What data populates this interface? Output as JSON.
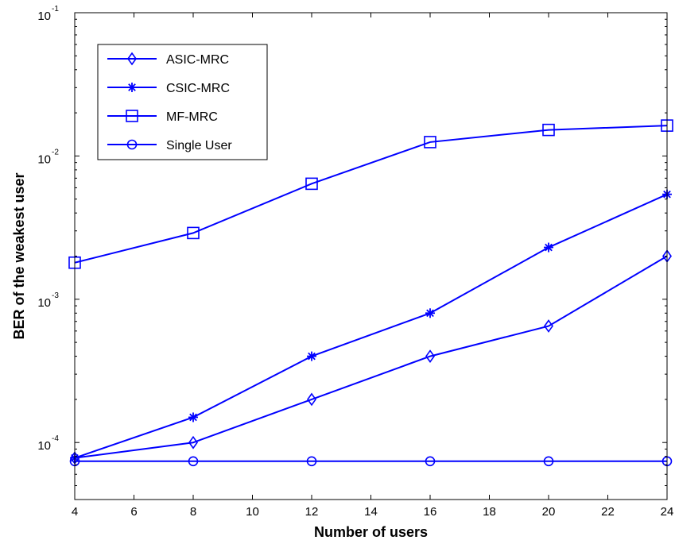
{
  "chart_data": {
    "type": "line",
    "title": "",
    "xlabel": "Number of users",
    "ylabel": "BER of the weakest user",
    "xlim": [
      4,
      24
    ],
    "ylim": [
      4e-05,
      0.1
    ],
    "yscale": "log",
    "grid": false,
    "legend_position": "top-left",
    "line_color": "#0000ff",
    "x_ticks": [
      "4",
      "6",
      "8",
      "10",
      "12",
      "14",
      "16",
      "18",
      "20",
      "22",
      "24"
    ],
    "y_ticks": [
      {
        "base": "10",
        "exp": "-4"
      },
      {
        "base": "10",
        "exp": "-3"
      },
      {
        "base": "10",
        "exp": "-2"
      },
      {
        "base": "10",
        "exp": "-1"
      }
    ],
    "x": [
      4,
      8,
      12,
      16,
      20,
      24
    ],
    "series": [
      {
        "name": "ASIC-MRC",
        "marker": "diamond",
        "values": [
          7.8e-05,
          0.0001,
          0.0002,
          0.0004,
          0.00065,
          0.002
        ]
      },
      {
        "name": "CSIC-MRC",
        "marker": "star",
        "values": [
          7.8e-05,
          0.00015,
          0.0004,
          0.0008,
          0.0023,
          0.0054
        ]
      },
      {
        "name": "MF-MRC",
        "marker": "square",
        "values": [
          0.0018,
          0.0029,
          0.0064,
          0.0125,
          0.0152,
          0.0163
        ]
      },
      {
        "name": "Single User",
        "marker": "circle",
        "values": [
          7.4e-05,
          7.4e-05,
          7.4e-05,
          7.4e-05,
          7.4e-05,
          7.4e-05
        ]
      }
    ]
  }
}
